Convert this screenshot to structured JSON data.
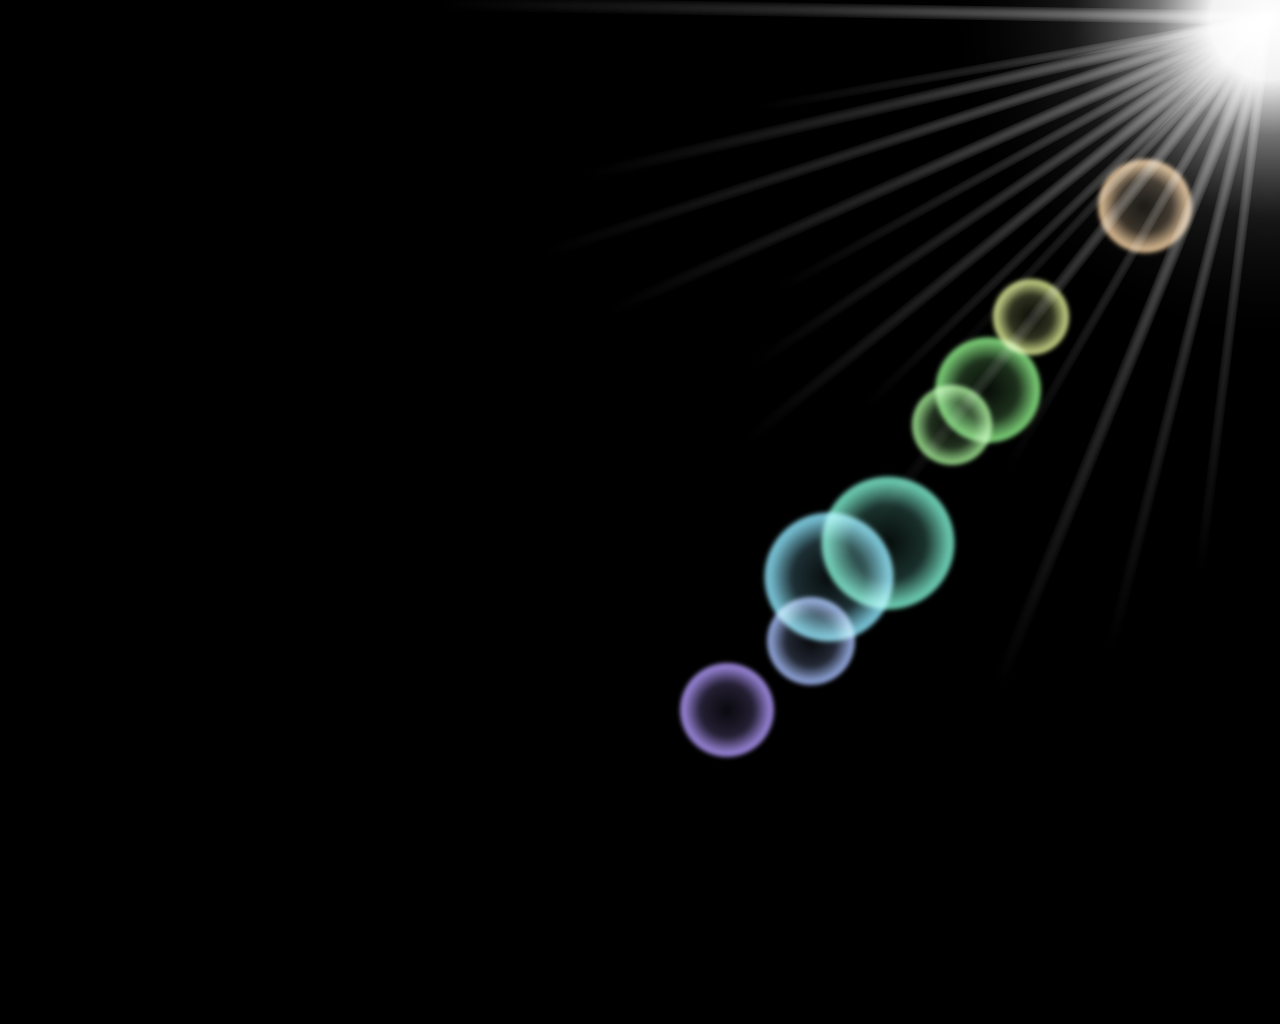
{
  "scene": {
    "background_color": "#000000",
    "light_source": {
      "name": "sun-glare",
      "color": "#ffffff"
    },
    "flare_orbs": [
      {
        "name": "flare-orb-peach",
        "color": "#ffd9a8"
      },
      {
        "name": "flare-orb-yellow-green",
        "color": "#e6f59a"
      },
      {
        "name": "flare-orb-green-large",
        "color": "#8ff08a"
      },
      {
        "name": "flare-orb-green-small",
        "color": "#a8f29a"
      },
      {
        "name": "flare-orb-aqua",
        "color": "#7ff0d2"
      },
      {
        "name": "flare-orb-cyan",
        "color": "#8fe8ff"
      },
      {
        "name": "flare-orb-periwinkle",
        "color": "#a9c2ff"
      },
      {
        "name": "flare-orb-violet",
        "color": "#b49cff"
      }
    ]
  }
}
